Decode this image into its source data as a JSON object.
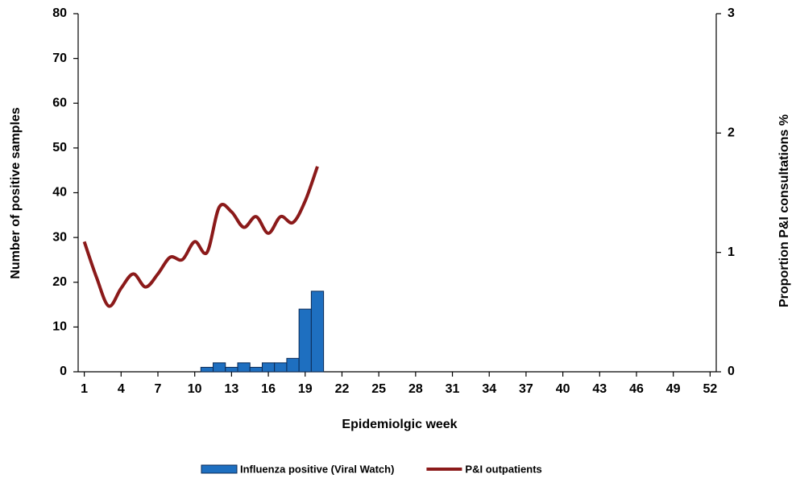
{
  "chart_data": {
    "type": "bar-line",
    "x": [
      1,
      2,
      3,
      4,
      5,
      6,
      7,
      8,
      9,
      10,
      11,
      12,
      13,
      14,
      15,
      16,
      17,
      18,
      19,
      20,
      21,
      22,
      23,
      24,
      25,
      26,
      27,
      28,
      29,
      30,
      31,
      32,
      33,
      34,
      35,
      36,
      37,
      38,
      39,
      40,
      41,
      42,
      43,
      44,
      45,
      46,
      47,
      48,
      49,
      50,
      51,
      52
    ],
    "xlim": [
      0.5,
      52.5
    ],
    "xticks": [
      1,
      4,
      7,
      10,
      13,
      16,
      19,
      22,
      25,
      28,
      31,
      34,
      37,
      40,
      43,
      46,
      49,
      52
    ],
    "xlabel": "Epidemiolgic week",
    "ylabel": "Number of positive samples",
    "y2label": "Proportion P&I consultations %",
    "ylim": [
      0,
      80
    ],
    "yticks": [
      0,
      10,
      20,
      30,
      40,
      50,
      60,
      70,
      80
    ],
    "y2lim": [
      0,
      3
    ],
    "y2ticks": [
      0,
      1,
      2,
      3
    ],
    "legend": "bottom",
    "series": [
      {
        "name": "Influenza positive (Viral Watch)",
        "color": "#1e6fc0",
        "kind": "bar",
        "values": [
          null,
          null,
          null,
          null,
          null,
          null,
          null,
          null,
          null,
          null,
          1,
          2,
          1,
          2,
          1,
          2,
          2,
          3,
          14,
          18,
          null,
          null,
          null,
          null,
          null,
          null,
          null,
          null,
          null,
          null,
          null,
          null,
          null,
          null,
          null,
          null,
          null,
          null,
          null,
          null,
          null,
          null,
          null,
          null,
          null,
          null,
          null,
          null,
          null,
          null,
          null,
          null
        ]
      },
      {
        "name": "P&I outpatients",
        "color": "#8b1a1a",
        "kind": "line",
        "axis": "y2",
        "values": [
          1.09,
          0.79,
          0.55,
          0.7,
          0.82,
          0.71,
          0.82,
          0.96,
          0.94,
          1.09,
          1.0,
          1.38,
          1.34,
          1.21,
          1.3,
          1.16,
          1.3,
          1.25,
          1.43,
          1.72,
          null,
          null,
          null,
          null,
          null,
          null,
          null,
          null,
          null,
          null,
          null,
          null,
          null,
          null,
          null,
          null,
          null,
          null,
          null,
          null,
          null,
          null,
          null,
          null,
          null,
          null,
          null,
          null,
          null,
          null,
          null,
          null
        ]
      }
    ]
  }
}
